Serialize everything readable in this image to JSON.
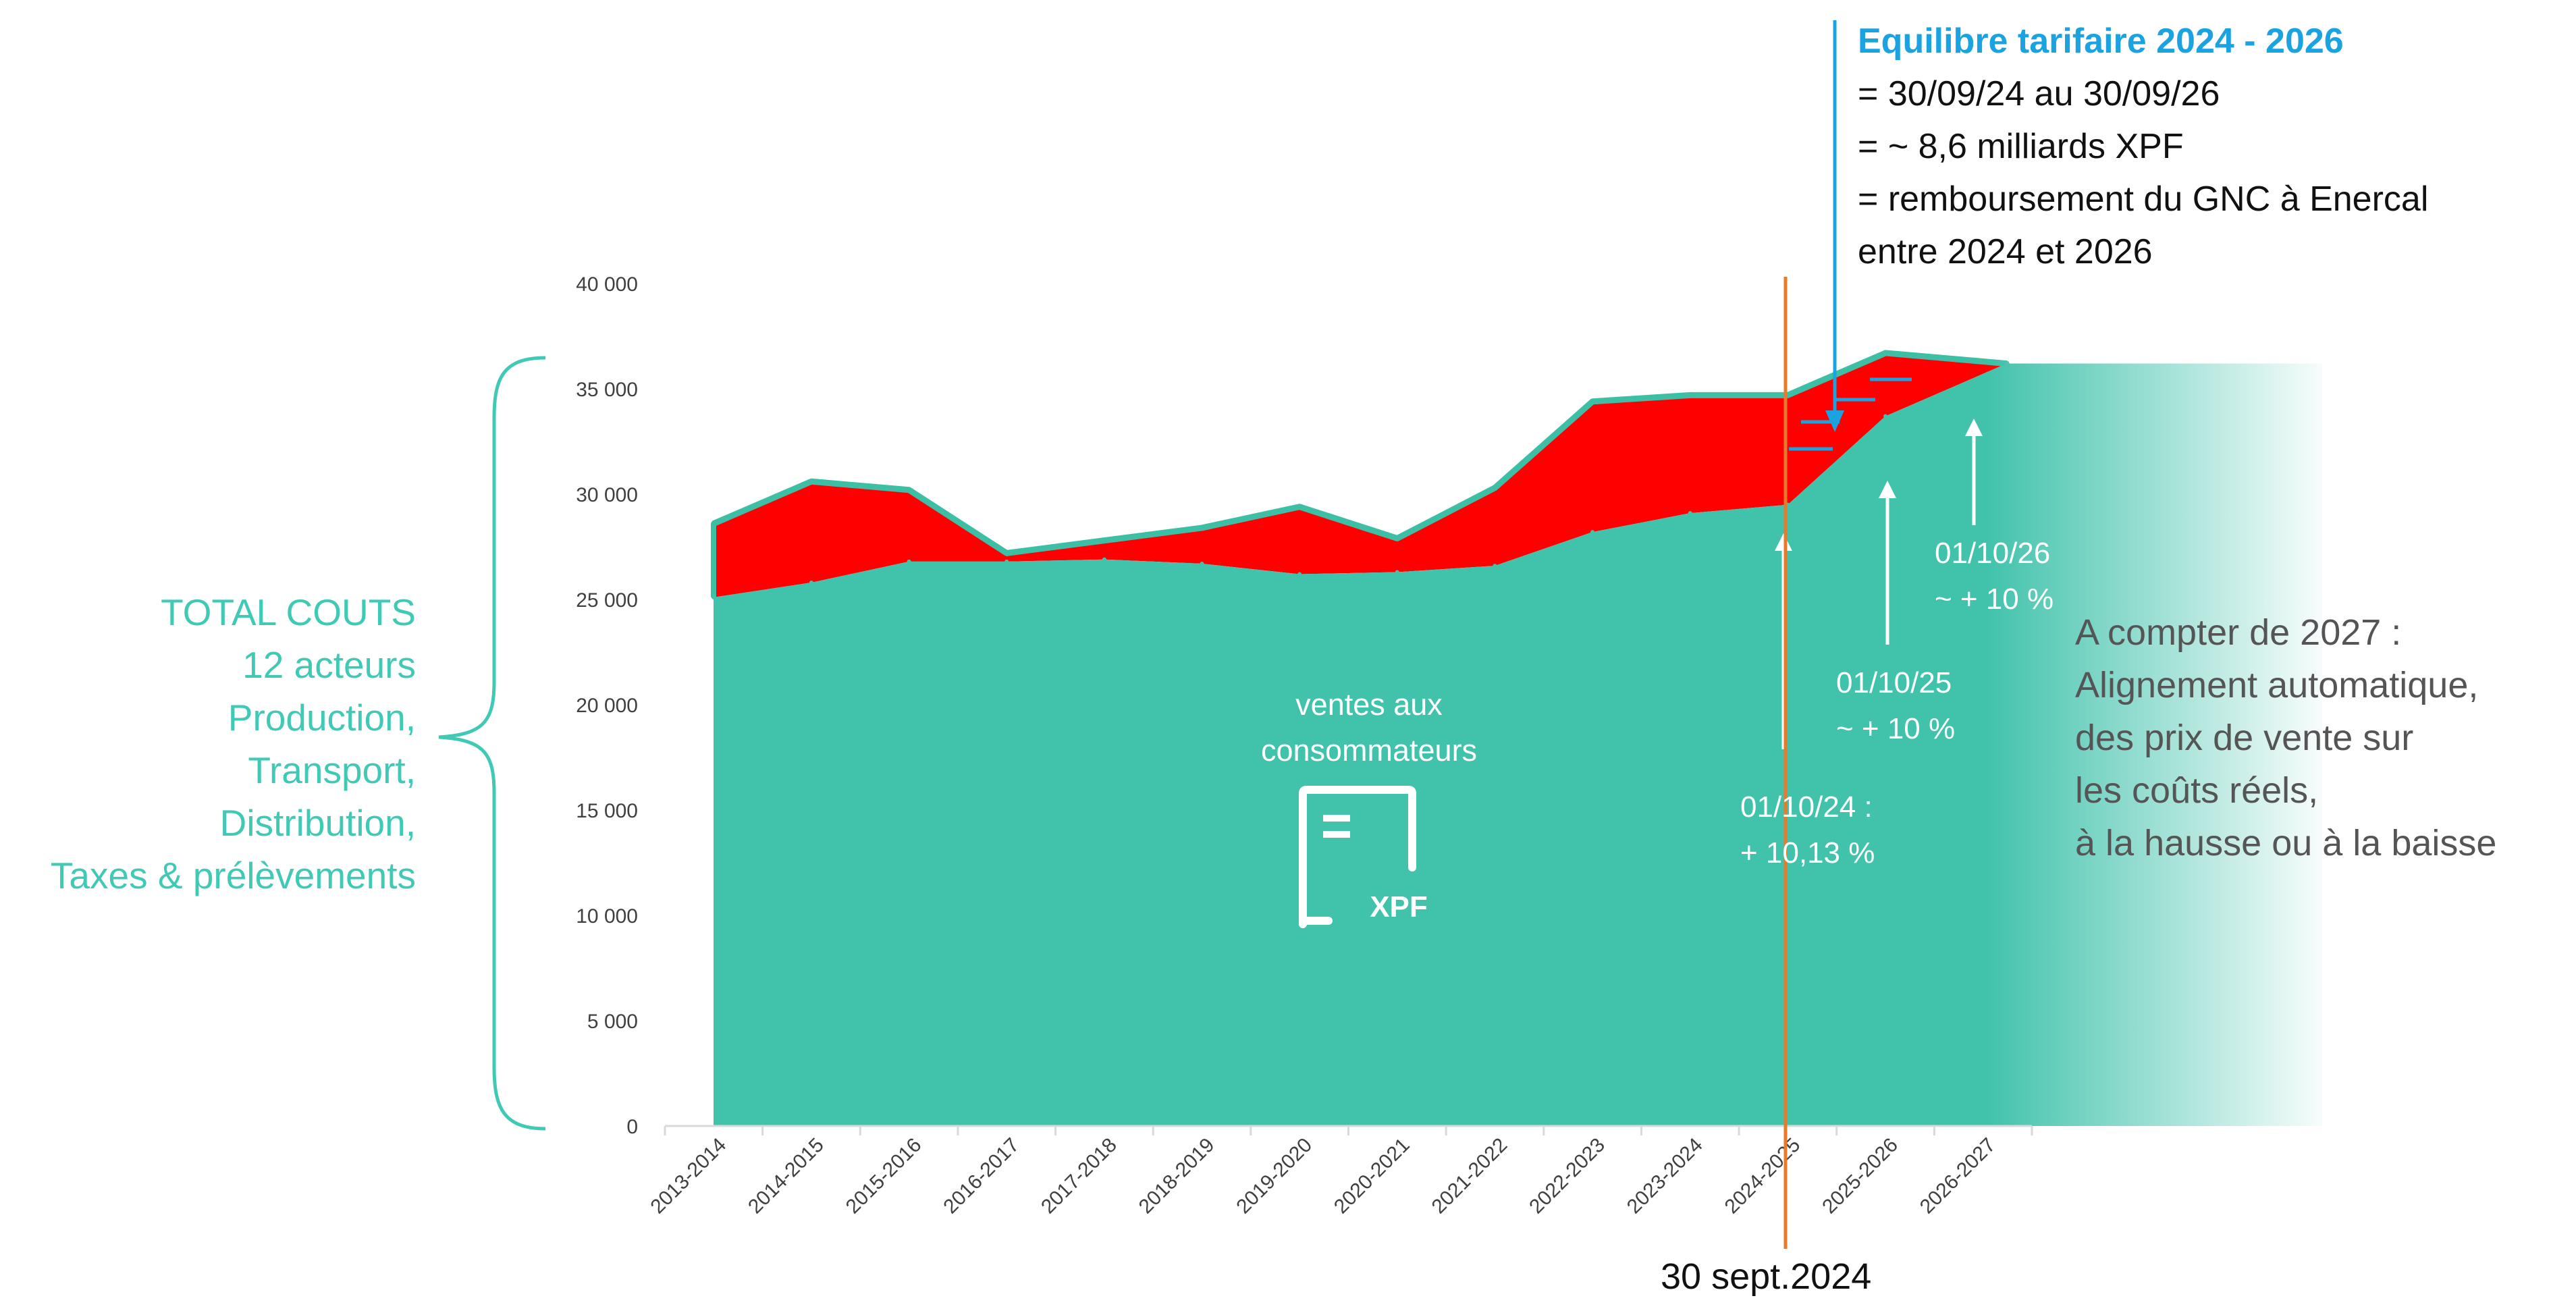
{
  "chart_data": {
    "type": "area",
    "categories": [
      "2013-2014",
      "2014-2015",
      "2015-2016",
      "2016-2017",
      "2017-2018",
      "2018-2019",
      "2019-2020",
      "2020-2021",
      "2021-2022",
      "2022-2023",
      "2023-2024",
      "2024-2025",
      "2025-2026",
      "2026-2027"
    ],
    "ylim": [
      0,
      40000
    ],
    "yticks": [
      "0",
      "5 000",
      "10 000",
      "15 000",
      "20 000",
      "25 000",
      "30 000",
      "35 000",
      "40 000"
    ],
    "series": [
      {
        "values": [
          28600,
          30600,
          30200,
          27200,
          27800,
          28400,
          29400,
          27900,
          30300,
          34400,
          34700,
          34700,
          36700,
          36200
        ]
      },
      {
        "values": [
          25100,
          25800,
          26800,
          26800,
          26900,
          26700,
          26200,
          26300,
          26600,
          28200,
          29100,
          29500,
          33700,
          36200
        ]
      }
    ],
    "colors": {
      "sales": "#40c2ab",
      "gap": "#ff0000",
      "outline": "#3dbfa6",
      "accent_blue": "#1aa3e0",
      "marker": "#e87a2c"
    }
  },
  "labels": {
    "total_couts": [
      "TOTAL COUTS",
      "12 acteurs",
      "Production,",
      "Transport,",
      "Distribution,",
      "Taxes & prélèvements"
    ],
    "ventes": [
      "ventes aux",
      "consommateurs"
    ],
    "xpf_icon_text": "XPF",
    "equilibre_title": "Equilibre tarifaire 2024 - 2026",
    "equilibre_lines": [
      "= 30/09/24 au 30/09/26",
      "= ~ 8,6 milliards XPF",
      "= remboursement du GNC à Enercal",
      "entre 2024 et 2026"
    ],
    "rise_2024": [
      "01/10/24 :",
      "+ 10,13 %"
    ],
    "rise_2025": [
      "01/10/25",
      "~ + 10 %"
    ],
    "rise_2026": [
      "01/10/26",
      "~ + 10 %"
    ],
    "from_2027": [
      "A compter de 2027 :",
      "Alignement automatique,",
      "des prix de vente sur",
      "les coûts réels,",
      "à la hausse ou à la baisse"
    ],
    "date_marker": "30 sept.2024"
  }
}
